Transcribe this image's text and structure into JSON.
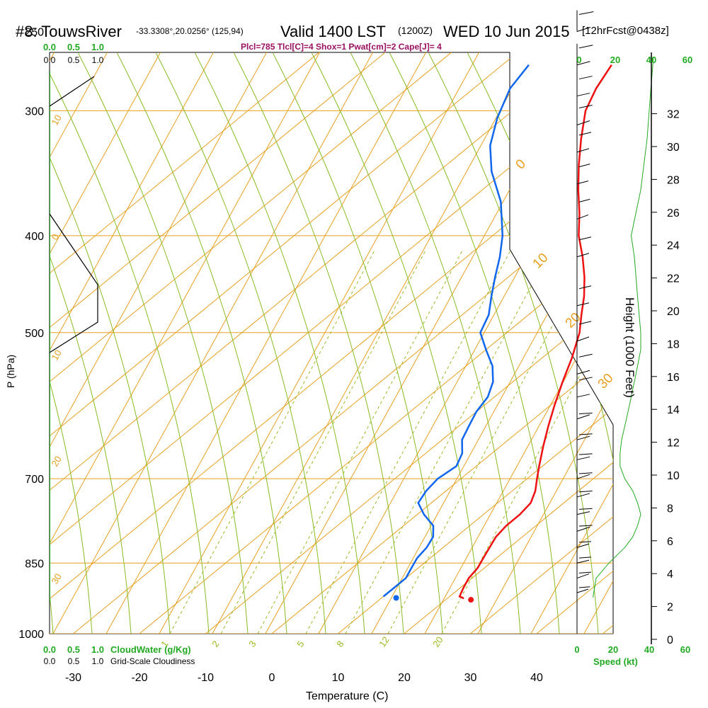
{
  "header": {
    "station": "#8: TouwsRiver",
    "coords": "-33.3308°,20.0256° (125,94)",
    "valid": "Valid 1400 LST",
    "zulu": "(1200Z)",
    "date": "WED 10 Jun 2015",
    "forecast": "[12hrFcst@0438z]"
  },
  "indices": "Plcl=785 Tlcl[C]=4 Shox=1 Pwat[cm]=2 Cape[J]= 4",
  "chart_data": {
    "type": "line",
    "title": "#8: TouwsRiver Skew-T sounding",
    "xlabel": "Temperature (C)",
    "ylabel": "P (hPa)",
    "right_ylabel": "Height (1000 Feet)",
    "x_ticks": [
      "-30",
      "-20",
      "-10",
      "0",
      "10",
      "20",
      "30",
      "40"
    ],
    "p_ticks": [
      "250",
      "300",
      "400",
      "500",
      "700",
      "850",
      "1000"
    ],
    "height_ticks": [
      "0",
      "2",
      "4",
      "6",
      "8",
      "10",
      "12",
      "14",
      "16",
      "18",
      "20",
      "22",
      "24",
      "26",
      "28",
      "30",
      "32"
    ],
    "isotherm_labels": [
      "-40",
      "-30",
      "-20",
      "-10",
      "0",
      "10",
      "20",
      "30"
    ],
    "mixing_ratio_labels": [
      "1",
      "2",
      "3",
      "5",
      "8",
      "12",
      "20"
    ],
    "speed_ticks_top": [
      "0",
      "20",
      "40",
      "60"
    ],
    "speed_ticks_bottom": [
      "0",
      "20",
      "40",
      "60"
    ],
    "speed_label": "Speed (kt)",
    "cloud_ticks_top": [
      "0.0",
      "0.5",
      "1.0"
    ],
    "cloud_ticks_bottom": [
      "0.0",
      "0.5",
      "1.0"
    ],
    "cloudwater_label": "CloudWater (g/Kg)",
    "cloudiness_label": "Grid-Scale Cloudiness",
    "series": [
      {
        "name": "Temperature",
        "color": "#ee1111",
        "points": [
          [
            922,
            22.5
          ],
          [
            918,
            21.5
          ],
          [
            900,
            20.5
          ],
          [
            880,
            19.5
          ],
          [
            860,
            19.0
          ],
          [
            840,
            18.0
          ],
          [
            820,
            17.0
          ],
          [
            800,
            16.0
          ],
          [
            780,
            15.5
          ],
          [
            760,
            15.5
          ],
          [
            740,
            15.0
          ],
          [
            720,
            13.5
          ],
          [
            700,
            11.5
          ],
          [
            680,
            9.5
          ],
          [
            650,
            6.5
          ],
          [
            620,
            3.5
          ],
          [
            590,
            0.5
          ],
          [
            560,
            -2.5
          ],
          [
            530,
            -5.5
          ],
          [
            500,
            -9.0
          ],
          [
            480,
            -12.0
          ],
          [
            460,
            -15.0
          ],
          [
            440,
            -18.5
          ],
          [
            420,
            -22.5
          ],
          [
            400,
            -27.0
          ],
          [
            380,
            -31.0
          ],
          [
            360,
            -35.5
          ],
          [
            340,
            -40.0
          ],
          [
            320,
            -44.5
          ],
          [
            300,
            -49.0
          ],
          [
            285,
            -51.5
          ],
          [
            270,
            -53.5
          ]
        ]
      },
      {
        "name": "Dewpoint",
        "color": "#1166ee",
        "points": [
          [
            918,
            10.0
          ],
          [
            900,
            10.0
          ],
          [
            880,
            10.0
          ],
          [
            860,
            9.0
          ],
          [
            840,
            8.0
          ],
          [
            820,
            7.5
          ],
          [
            800,
            6.5
          ],
          [
            780,
            4.5
          ],
          [
            760,
            1.0
          ],
          [
            740,
            -2.0
          ],
          [
            720,
            -3.0
          ],
          [
            700,
            -3.5
          ],
          [
            680,
            -3.0
          ],
          [
            660,
            -4.5
          ],
          [
            640,
            -7.0
          ],
          [
            620,
            -8.5
          ],
          [
            600,
            -10.0
          ],
          [
            580,
            -11.0
          ],
          [
            560,
            -13.0
          ],
          [
            540,
            -16.0
          ],
          [
            520,
            -20.0
          ],
          [
            500,
            -24.0
          ],
          [
            480,
            -26.0
          ],
          [
            460,
            -29.0
          ],
          [
            440,
            -32.0
          ],
          [
            420,
            -35.0
          ],
          [
            400,
            -38.5
          ],
          [
            370,
            -45.0
          ],
          [
            345,
            -52.0
          ],
          [
            325,
            -57.0
          ],
          [
            305,
            -61.0
          ],
          [
            285,
            -64.5
          ],
          [
            270,
            -66.0
          ]
        ]
      }
    ],
    "cloud_water_pressure": [
      250,
      1000
    ],
    "wind_barbs": [
      {
        "p": 250,
        "dir": 280,
        "spd": 25
      },
      {
        "p": 270,
        "dir": 280,
        "spd": 22
      },
      {
        "p": 290,
        "dir": 280,
        "spd": 20
      },
      {
        "p": 310,
        "dir": 280,
        "spd": 20
      },
      {
        "p": 330,
        "dir": 280,
        "spd": 15
      },
      {
        "p": 355,
        "dir": 280,
        "spd": 10
      },
      {
        "p": 385,
        "dir": 285,
        "spd": 10
      },
      {
        "p": 420,
        "dir": 290,
        "spd": 15
      },
      {
        "p": 470,
        "dir": 300,
        "spd": 15
      },
      {
        "p": 510,
        "dir": 300,
        "spd": 15
      },
      {
        "p": 550,
        "dir": 310,
        "spd": 20
      },
      {
        "p": 580,
        "dir": 310,
        "spd": 20
      },
      {
        "p": 610,
        "dir": 315,
        "spd": 20
      },
      {
        "p": 640,
        "dir": 320,
        "spd": 20
      },
      {
        "p": 670,
        "dir": 320,
        "spd": 20
      },
      {
        "p": 700,
        "dir": 320,
        "spd": 20
      },
      {
        "p": 730,
        "dir": 320,
        "spd": 20
      },
      {
        "p": 760,
        "dir": 320,
        "spd": 20
      },
      {
        "p": 790,
        "dir": 320,
        "spd": 20
      },
      {
        "p": 820,
        "dir": 330,
        "spd": 15
      },
      {
        "p": 850,
        "dir": 340,
        "spd": 15
      },
      {
        "p": 880,
        "dir": 345,
        "spd": 15
      },
      {
        "p": 910,
        "dir": 350,
        "spd": 10
      }
    ],
    "wind_speed_profile": [
      [
        920,
        10
      ],
      [
        880,
        12
      ],
      [
        850,
        20
      ],
      [
        820,
        30
      ],
      [
        800,
        35
      ],
      [
        780,
        38
      ],
      [
        760,
        40
      ],
      [
        740,
        38
      ],
      [
        720,
        35
      ],
      [
        700,
        30
      ],
      [
        680,
        27
      ],
      [
        660,
        27
      ],
      [
        640,
        28
      ],
      [
        620,
        30
      ],
      [
        600,
        32
      ],
      [
        580,
        34
      ],
      [
        560,
        36
      ],
      [
        540,
        38
      ],
      [
        520,
        40
      ],
      [
        500,
        40
      ],
      [
        460,
        38
      ],
      [
        420,
        36
      ],
      [
        400,
        34
      ],
      [
        360,
        40
      ],
      [
        320,
        44
      ],
      [
        290,
        46
      ],
      [
        265,
        48
      ]
    ]
  }
}
